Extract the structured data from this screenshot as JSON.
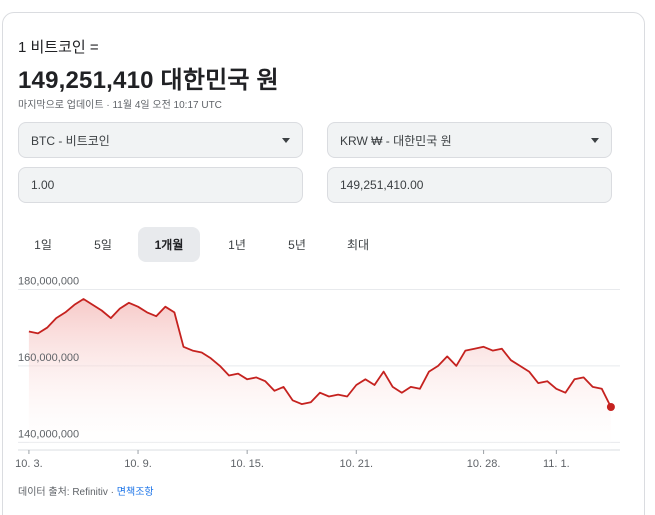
{
  "header": {
    "subtitle": "1 비트코인 =",
    "value": "149,251,410 대한민국 원",
    "updated": "마지막으로 업데이트 · 11월 4일 오전 10:17 UTC"
  },
  "converter": {
    "from_currency": "BTC - 비트코인",
    "to_currency": "KRW ₩ - 대한민국 원",
    "from_amount": "1.00",
    "to_amount": "149,251,410.00"
  },
  "tabs": [
    {
      "label": "1일",
      "active": false
    },
    {
      "label": "5일",
      "active": false
    },
    {
      "label": "1개월",
      "active": true
    },
    {
      "label": "1년",
      "active": false
    },
    {
      "label": "5년",
      "active": false
    },
    {
      "label": "최대",
      "active": false
    }
  ],
  "colors": {
    "line": "#c5221f",
    "fill_top": "#f4b8b6",
    "grid": "#e8eaed"
  },
  "chart_data": {
    "type": "area",
    "title": "",
    "xlabel": "",
    "ylabel": "",
    "y_ticks": [
      {
        "value": 180000000,
        "label": "180,000,000"
      },
      {
        "value": 160000000,
        "label": "160,000,000"
      },
      {
        "value": 140000000,
        "label": "140,000,000"
      }
    ],
    "x_ticks": [
      {
        "t": 0,
        "label": "10. 3."
      },
      {
        "t": 6,
        "label": "10. 9."
      },
      {
        "t": 12,
        "label": "10. 15."
      },
      {
        "t": 18,
        "label": "10. 21."
      },
      {
        "t": 25,
        "label": "10. 28."
      },
      {
        "t": 29,
        "label": "11. 1."
      }
    ],
    "ylim": [
      138000000,
      183000000
    ],
    "xlim": [
      -0.6,
      32.5
    ],
    "grid": true,
    "x": [
      0,
      0.5,
      1,
      1.5,
      2,
      2.5,
      3,
      3.5,
      4,
      4.5,
      5,
      5.5,
      6,
      6.5,
      7,
      7.5,
      8,
      8.5,
      9,
      9.5,
      10,
      10.5,
      11,
      11.5,
      12,
      12.5,
      13,
      13.5,
      14,
      14.5,
      15,
      15.5,
      16,
      16.5,
      17,
      17.5,
      18,
      18.5,
      19,
      19.5,
      20,
      20.5,
      21,
      21.5,
      22,
      22.5,
      23,
      23.5,
      24,
      24.5,
      25,
      25.5,
      26,
      26.5,
      27,
      27.5,
      28,
      28.5,
      29,
      29.5,
      30,
      30.5,
      31,
      31.5,
      32
    ],
    "values": [
      169000000,
      168500000,
      170000000,
      172500000,
      174000000,
      176000000,
      177500000,
      176000000,
      174500000,
      172500000,
      175000000,
      176500000,
      175500000,
      174000000,
      173000000,
      175500000,
      174000000,
      165000000,
      164000000,
      163500000,
      162000000,
      160000000,
      157500000,
      158000000,
      156500000,
      157000000,
      156000000,
      153500000,
      154500000,
      151000000,
      150000000,
      150500000,
      153000000,
      152000000,
      152500000,
      152000000,
      155000000,
      156500000,
      155000000,
      158500000,
      154500000,
      153000000,
      154500000,
      154000000,
      158500000,
      160000000,
      162500000,
      160000000,
      164000000,
      164500000,
      165000000,
      164000000,
      164500000,
      161500000,
      160000000,
      158500000,
      155500000,
      156000000,
      154000000,
      153000000,
      156500000,
      157000000,
      154500000,
      154000000,
      149251410
    ]
  },
  "footer": {
    "source": "데이터 출처: Refinitiv · ",
    "disclaimer": "면책조항"
  }
}
